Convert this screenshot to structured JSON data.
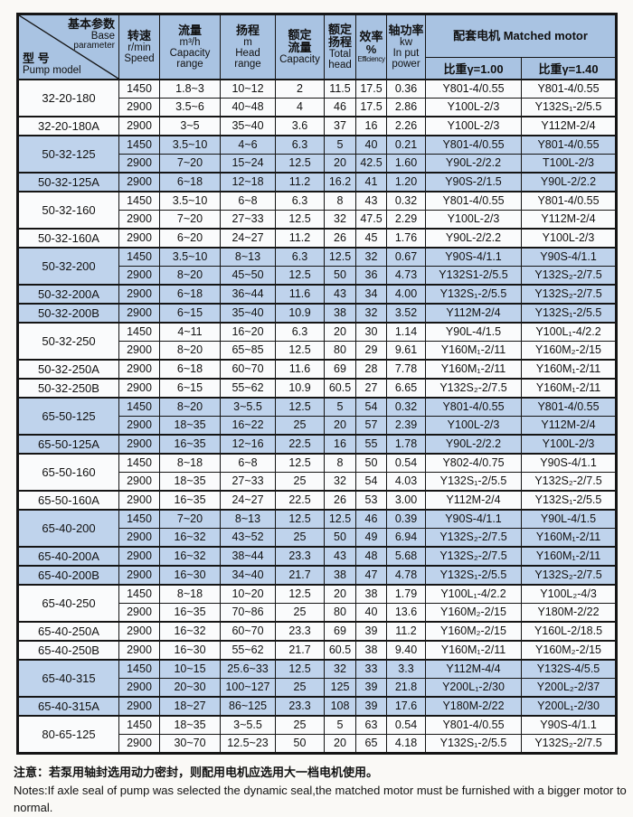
{
  "header": {
    "corner": {
      "param_zh": "基本参数",
      "param_en1": "Base",
      "param_en2": "parameter",
      "model_zh": "型 号",
      "model_en": "Pump model"
    },
    "speed": {
      "l1": "转速",
      "l2": "r/min",
      "l3": "Speed"
    },
    "capacity_range": {
      "l1": "流量",
      "l2": "m³/h",
      "l3": "Capacity",
      "l4": "range"
    },
    "head_range": {
      "l1": "扬程",
      "l2": "m",
      "l3": "Head",
      "l4": "range"
    },
    "rated_capacity": {
      "l1": "额定",
      "l2": "流量",
      "l3": "Capacity"
    },
    "rated_head": {
      "l1": "额定",
      "l2": "扬程",
      "l3": "Total",
      "l4": "head"
    },
    "efficiency": {
      "l1": "效率",
      "l2": "%",
      "l3": "Efficiency"
    },
    "input_power": {
      "l1": "轴功率",
      "l2": "kw",
      "l3": "In put",
      "l4": "power"
    },
    "matched_motor": {
      "title": "配套电机 Matched motor",
      "gamma_100": "比重γ=1.00",
      "gamma_140": "比重γ=1.40"
    }
  },
  "groups": [
    {
      "model": "32-20-180",
      "shaded": false,
      "rows": [
        {
          "speed": "1450",
          "capacity_range": "1.8~3",
          "head_range": "10~12",
          "capacity": "2",
          "total_head": "11.5",
          "efficiency": "17.5",
          "input_power": "0.36",
          "motor_g100": "Y801-4/0.55",
          "motor_g140": "Y801-4/0.55"
        },
        {
          "speed": "2900",
          "capacity_range": "3.5~6",
          "head_range": "40~48",
          "capacity": "4",
          "total_head": "46",
          "efficiency": "17.5",
          "input_power": "2.86",
          "motor_g100": "Y100L-2/3",
          "motor_g140": "Y132S₁-2/5.5"
        }
      ]
    },
    {
      "model": "32-20-180A",
      "shaded": false,
      "rows": [
        {
          "speed": "2900",
          "capacity_range": "3~5",
          "head_range": "35~40",
          "capacity": "3.6",
          "total_head": "37",
          "efficiency": "16",
          "input_power": "2.26",
          "motor_g100": "Y100L-2/3",
          "motor_g140": "Y112M-2/4"
        }
      ]
    },
    {
      "model": "50-32-125",
      "shaded": true,
      "rows": [
        {
          "speed": "1450",
          "capacity_range": "3.5~10",
          "head_range": "4~6",
          "capacity": "6.3",
          "total_head": "5",
          "efficiency": "40",
          "input_power": "0.21",
          "motor_g100": "Y801-4/0.55",
          "motor_g140": "Y801-4/0.55"
        },
        {
          "speed": "2900",
          "capacity_range": "7~20",
          "head_range": "15~24",
          "capacity": "12.5",
          "total_head": "20",
          "efficiency": "42.5",
          "input_power": "1.60",
          "motor_g100": "Y90L-2/2.2",
          "motor_g140": "T100L-2/3"
        }
      ]
    },
    {
      "model": "50-32-125A",
      "shaded": true,
      "rows": [
        {
          "speed": "2900",
          "capacity_range": "6~18",
          "head_range": "12~18",
          "capacity": "11.2",
          "total_head": "16.2",
          "efficiency": "41",
          "input_power": "1.20",
          "motor_g100": "Y90S-2/1.5",
          "motor_g140": "Y90L-2/2.2"
        }
      ]
    },
    {
      "model": "50-32-160",
      "shaded": false,
      "rows": [
        {
          "speed": "1450",
          "capacity_range": "3.5~10",
          "head_range": "6~8",
          "capacity": "6.3",
          "total_head": "8",
          "efficiency": "43",
          "input_power": "0.32",
          "motor_g100": "Y801-4/0.55",
          "motor_g140": "Y801-4/0.55"
        },
        {
          "speed": "2900",
          "capacity_range": "7~20",
          "head_range": "27~33",
          "capacity": "12.5",
          "total_head": "32",
          "efficiency": "47.5",
          "input_power": "2.29",
          "motor_g100": "Y100L-2/3",
          "motor_g140": "Y112M-2/4"
        }
      ]
    },
    {
      "model": "50-32-160A",
      "shaded": false,
      "rows": [
        {
          "speed": "2900",
          "capacity_range": "6~20",
          "head_range": "24~27",
          "capacity": "11.2",
          "total_head": "26",
          "efficiency": "45",
          "input_power": "1.76",
          "motor_g100": "Y90L-2/2.2",
          "motor_g140": "Y100L-2/3"
        }
      ]
    },
    {
      "model": "50-32-200",
      "shaded": true,
      "rows": [
        {
          "speed": "1450",
          "capacity_range": "3.5~10",
          "head_range": "8~13",
          "capacity": "6.3",
          "total_head": "12.5",
          "efficiency": "32",
          "input_power": "0.67",
          "motor_g100": "Y90S-4/1.1",
          "motor_g140": "Y90S-4/1.1"
        },
        {
          "speed": "2900",
          "capacity_range": "8~20",
          "head_range": "45~50",
          "capacity": "12.5",
          "total_head": "50",
          "efficiency": "36",
          "input_power": "4.73",
          "motor_g100": "Y132S1-2/5.5",
          "motor_g140": "Y132S₂-2/7.5"
        }
      ]
    },
    {
      "model": "50-32-200A",
      "shaded": true,
      "rows": [
        {
          "speed": "2900",
          "capacity_range": "6~18",
          "head_range": "36~44",
          "capacity": "11.6",
          "total_head": "43",
          "efficiency": "34",
          "input_power": "4.00",
          "motor_g100": "Y132S₁-2/5.5",
          "motor_g140": "Y132S₂-2/7.5"
        }
      ]
    },
    {
      "model": "50-32-200B",
      "shaded": true,
      "rows": [
        {
          "speed": "2900",
          "capacity_range": "6~15",
          "head_range": "35~40",
          "capacity": "10.9",
          "total_head": "38",
          "efficiency": "32",
          "input_power": "3.52",
          "motor_g100": "Y112M-2/4",
          "motor_g140": "Y132S₁-2/5.5"
        }
      ]
    },
    {
      "model": "50-32-250",
      "shaded": false,
      "rows": [
        {
          "speed": "1450",
          "capacity_range": "4~11",
          "head_range": "16~20",
          "capacity": "6.3",
          "total_head": "20",
          "efficiency": "30",
          "input_power": "1.14",
          "motor_g100": "Y90L-4/1.5",
          "motor_g140": "Y100L₁-4/2.2"
        },
        {
          "speed": "2900",
          "capacity_range": "8~20",
          "head_range": "65~85",
          "capacity": "12.5",
          "total_head": "80",
          "efficiency": "29",
          "input_power": "9.61",
          "motor_g100": "Y160M₁-2/11",
          "motor_g140": "Y160M₂-2/15"
        }
      ]
    },
    {
      "model": "50-32-250A",
      "shaded": false,
      "rows": [
        {
          "speed": "2900",
          "capacity_range": "6~18",
          "head_range": "60~70",
          "capacity": "11.6",
          "total_head": "69",
          "efficiency": "28",
          "input_power": "7.78",
          "motor_g100": "Y160M₁-2/11",
          "motor_g140": "Y160M₁-2/11"
        }
      ]
    },
    {
      "model": "50-32-250B",
      "shaded": false,
      "rows": [
        {
          "speed": "2900",
          "capacity_range": "6~15",
          "head_range": "55~62",
          "capacity": "10.9",
          "total_head": "60.5",
          "efficiency": "27",
          "input_power": "6.65",
          "motor_g100": "Y132S₂-2/7.5",
          "motor_g140": "Y160M₁-2/11"
        }
      ]
    },
    {
      "model": "65-50-125",
      "shaded": true,
      "rows": [
        {
          "speed": "1450",
          "capacity_range": "8~20",
          "head_range": "3~5.5",
          "capacity": "12.5",
          "total_head": "5",
          "efficiency": "54",
          "input_power": "0.32",
          "motor_g100": "Y801-4/0.55",
          "motor_g140": "Y801-4/0.55"
        },
        {
          "speed": "2900",
          "capacity_range": "18~35",
          "head_range": "16~22",
          "capacity": "25",
          "total_head": "20",
          "efficiency": "57",
          "input_power": "2.39",
          "motor_g100": "Y100L-2/3",
          "motor_g140": "Y112M-2/4"
        }
      ]
    },
    {
      "model": "65-50-125A",
      "shaded": true,
      "rows": [
        {
          "speed": "2900",
          "capacity_range": "16~35",
          "head_range": "12~16",
          "capacity": "22.5",
          "total_head": "16",
          "efficiency": "55",
          "input_power": "1.78",
          "motor_g100": "Y90L-2/2.2",
          "motor_g140": "Y100L-2/3"
        }
      ]
    },
    {
      "model": "65-50-160",
      "shaded": false,
      "rows": [
        {
          "speed": "1450",
          "capacity_range": "8~18",
          "head_range": "6~8",
          "capacity": "12.5",
          "total_head": "8",
          "efficiency": "50",
          "input_power": "0.54",
          "motor_g100": "Y802-4/0.75",
          "motor_g140": "Y90S-4/1.1"
        },
        {
          "speed": "2900",
          "capacity_range": "18~35",
          "head_range": "27~33",
          "capacity": "25",
          "total_head": "32",
          "efficiency": "54",
          "input_power": "4.03",
          "motor_g100": "Y132S₁-2/5.5",
          "motor_g140": "Y132S₂-2/7.5"
        }
      ]
    },
    {
      "model": "65-50-160A",
      "shaded": false,
      "rows": [
        {
          "speed": "2900",
          "capacity_range": "16~35",
          "head_range": "24~27",
          "capacity": "22.5",
          "total_head": "26",
          "efficiency": "53",
          "input_power": "3.00",
          "motor_g100": "Y112M-2/4",
          "motor_g140": "Y132S₁-2/5.5"
        }
      ]
    },
    {
      "model": "65-40-200",
      "shaded": true,
      "rows": [
        {
          "speed": "1450",
          "capacity_range": "7~20",
          "head_range": "8~13",
          "capacity": "12.5",
          "total_head": "12.5",
          "efficiency": "46",
          "input_power": "0.39",
          "motor_g100": "Y90S-4/1.1",
          "motor_g140": "Y90L-4/1.5"
        },
        {
          "speed": "2900",
          "capacity_range": "16~32",
          "head_range": "43~52",
          "capacity": "25",
          "total_head": "50",
          "efficiency": "49",
          "input_power": "6.94",
          "motor_g100": "Y132S₂-2/7.5",
          "motor_g140": "Y160M₁-2/11"
        }
      ]
    },
    {
      "model": "65-40-200A",
      "shaded": true,
      "rows": [
        {
          "speed": "2900",
          "capacity_range": "16~32",
          "head_range": "38~44",
          "capacity": "23.3",
          "total_head": "43",
          "efficiency": "48",
          "input_power": "5.68",
          "motor_g100": "Y132S₂-2/7.5",
          "motor_g140": "Y160M₁-2/11"
        }
      ]
    },
    {
      "model": "65-40-200B",
      "shaded": true,
      "rows": [
        {
          "speed": "2900",
          "capacity_range": "16~30",
          "head_range": "34~40",
          "capacity": "21.7",
          "total_head": "38",
          "efficiency": "47",
          "input_power": "4.78",
          "motor_g100": "Y132S₁-2/5.5",
          "motor_g140": "Y132S₂-2/7.5"
        }
      ]
    },
    {
      "model": "65-40-250",
      "shaded": false,
      "rows": [
        {
          "speed": "1450",
          "capacity_range": "8~18",
          "head_range": "10~20",
          "capacity": "12.5",
          "total_head": "20",
          "efficiency": "38",
          "input_power": "1.79",
          "motor_g100": "Y100L₁-4/2.2",
          "motor_g140": "Y100L₂-4/3"
        },
        {
          "speed": "2900",
          "capacity_range": "16~35",
          "head_range": "70~86",
          "capacity": "25",
          "total_head": "80",
          "efficiency": "40",
          "input_power": "13.6",
          "motor_g100": "Y160M₂-2/15",
          "motor_g140": "Y180M-2/22"
        }
      ]
    },
    {
      "model": "65-40-250A",
      "shaded": false,
      "rows": [
        {
          "speed": "2900",
          "capacity_range": "16~32",
          "head_range": "60~70",
          "capacity": "23.3",
          "total_head": "69",
          "efficiency": "39",
          "input_power": "11.2",
          "motor_g100": "Y160M₂-2/15",
          "motor_g140": "Y160L-2/18.5"
        }
      ]
    },
    {
      "model": "65-40-250B",
      "shaded": false,
      "rows": [
        {
          "speed": "2900",
          "capacity_range": "16~30",
          "head_range": "55~62",
          "capacity": "21.7",
          "total_head": "60.5",
          "efficiency": "38",
          "input_power": "9.40",
          "motor_g100": "Y160M₁-2/11",
          "motor_g140": "Y160M₂-2/15"
        }
      ]
    },
    {
      "model": "65-40-315",
      "shaded": true,
      "rows": [
        {
          "speed": "1450",
          "capacity_range": "10~15",
          "head_range": "25.6~33",
          "capacity": "12.5",
          "total_head": "32",
          "efficiency": "33",
          "input_power": "3.3",
          "motor_g100": "Y112M-4/4",
          "motor_g140": "Y132S-4/5.5"
        },
        {
          "speed": "2900",
          "capacity_range": "20~30",
          "head_range": "100~127",
          "capacity": "25",
          "total_head": "125",
          "efficiency": "39",
          "input_power": "21.8",
          "motor_g100": "Y200L₁-2/30",
          "motor_g140": "Y200L₂-2/37"
        }
      ]
    },
    {
      "model": "65-40-315A",
      "shaded": true,
      "rows": [
        {
          "speed": "2900",
          "capacity_range": "18~27",
          "head_range": "86~125",
          "capacity": "23.3",
          "total_head": "108",
          "efficiency": "39",
          "input_power": "17.6",
          "motor_g100": "Y180M-2/22",
          "motor_g140": "Y200L₁-2/30"
        }
      ]
    },
    {
      "model": "80-65-125",
      "shaded": false,
      "rows": [
        {
          "speed": "1450",
          "capacity_range": "18~35",
          "head_range": "3~5.5",
          "capacity": "25",
          "total_head": "5",
          "efficiency": "63",
          "input_power": "0.54",
          "motor_g100": "Y801-4/0.55",
          "motor_g140": "Y90S-4/1.1"
        },
        {
          "speed": "2900",
          "capacity_range": "30~70",
          "head_range": "12.5~23",
          "capacity": "50",
          "total_head": "20",
          "efficiency": "65",
          "input_power": "4.18",
          "motor_g100": "Y132S₁-2/5.5",
          "motor_g140": "Y132S₂-2/7.5"
        }
      ]
    }
  ],
  "notes": {
    "zh": "注意：若泵用轴封选用动力密封，则配用电机应选用大一档电机使用。",
    "en": "Notes:If axle seal of pump was selected the dynamic seal,the matched motor must be furnished with a bigger motor to normal."
  },
  "colors": {
    "header_bg": "#a9c3e2",
    "shaded_row_bg": "#bfd3ec",
    "row_bg": "#fafbfc",
    "border": "#151515"
  }
}
